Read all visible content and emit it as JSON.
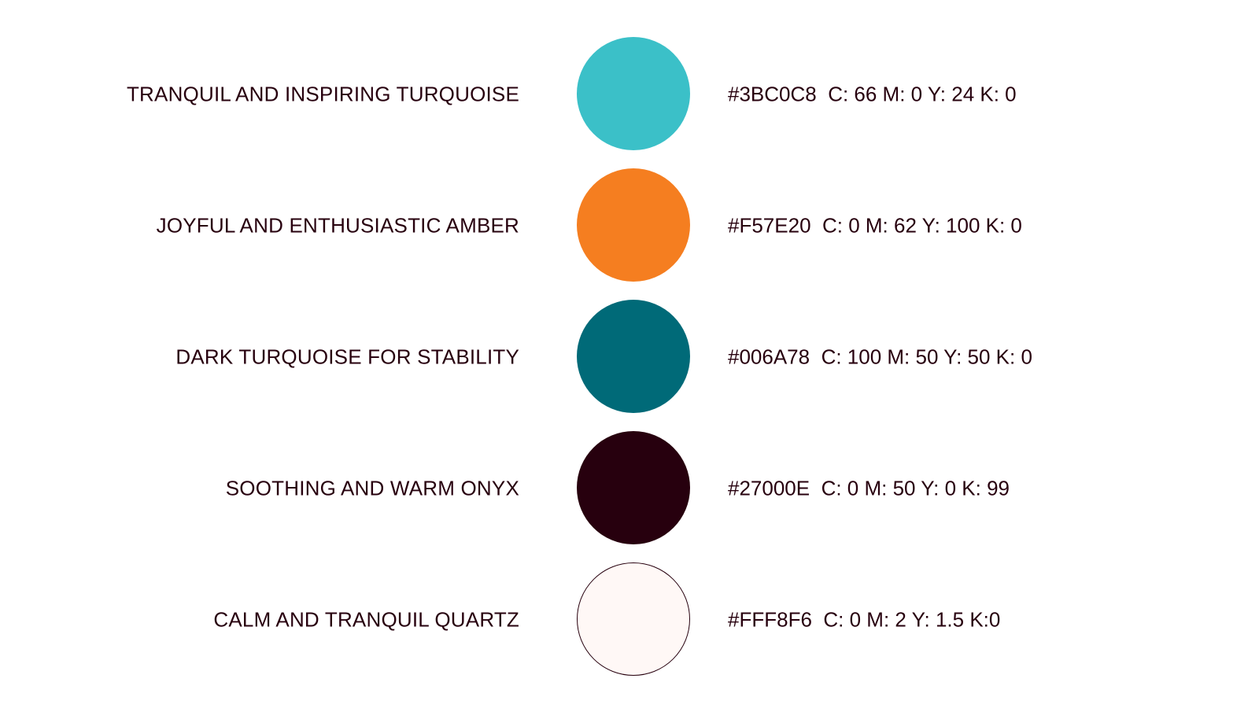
{
  "swatches": [
    {
      "name": "TRANQUIL AND INSPIRING TURQUOISE",
      "hex": "#3BC0C8",
      "cmyk": "C: 66 M: 0 Y: 24 K: 0",
      "color": "#3BC0C8"
    },
    {
      "name": "JOYFUL AND ENTHUSIASTIC AMBER",
      "hex": "#F57E20",
      "cmyk": "C: 0 M: 62 Y: 100 K: 0",
      "color": "#F57E20"
    },
    {
      "name": "DARK TURQUOISE FOR STABILITY",
      "hex": "#006A78",
      "cmyk": "C: 100 M: 50 Y: 50 K: 0",
      "color": "#006A78"
    },
    {
      "name": "SOOTHING AND WARM ONYX",
      "hex": "#27000E",
      "cmyk": "C: 0 M: 50 Y: 0 K: 99",
      "color": "#27000E"
    },
    {
      "name": "CALM AND TRANQUIL QUARTZ",
      "hex": "#FFF8F6",
      "cmyk": "C: 0 M: 2 Y: 1.5 K:0",
      "color": "#FFF8F6",
      "outline": "#27000E"
    }
  ]
}
